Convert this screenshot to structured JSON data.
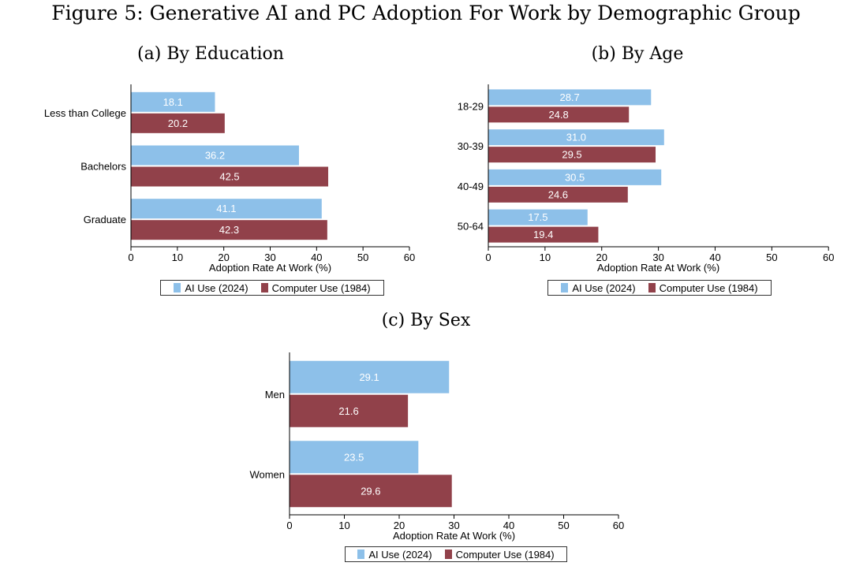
{
  "figure_title": "Figure 5: Generative AI and PC Adoption For Work by Demographic Group",
  "colors": {
    "ai": "#8dc0e9",
    "pc": "#91414a"
  },
  "legend": {
    "ai_label": "AI Use (2024)",
    "pc_label": "Computer Use (1984)"
  },
  "chart_data": [
    {
      "type": "bar",
      "orientation": "horizontal",
      "title": "(a) By Education",
      "categories": [
        "Less than College",
        "Bachelors",
        "Graduate"
      ],
      "series": [
        {
          "name": "AI Use (2024)",
          "values": [
            18.1,
            36.2,
            41.1
          ],
          "labels": [
            "18.1",
            "36.2",
            "41.1"
          ]
        },
        {
          "name": "Computer Use (1984)",
          "values": [
            20.2,
            42.5,
            42.3
          ],
          "labels": [
            "20.2",
            "42.5",
            "42.3"
          ]
        }
      ],
      "xlabel": "Adoption Rate At Work (%)",
      "xlim": [
        0,
        60
      ],
      "xticks": [
        "0",
        "10",
        "20",
        "30",
        "40",
        "50",
        "60"
      ],
      "legend": "bottom"
    },
    {
      "type": "bar",
      "orientation": "horizontal",
      "title": "(b) By Age",
      "categories": [
        "18-29",
        "30-39",
        "40-49",
        "50-64"
      ],
      "series": [
        {
          "name": "AI Use (2024)",
          "values": [
            28.7,
            31.0,
            30.5,
            17.5
          ],
          "labels": [
            "28.7",
            "31.0",
            "30.5",
            "17.5"
          ]
        },
        {
          "name": "Computer Use (1984)",
          "values": [
            24.8,
            29.5,
            24.6,
            19.4
          ],
          "labels": [
            "24.8",
            "29.5",
            "24.6",
            "19.4"
          ]
        }
      ],
      "xlabel": "Adoption Rate At Work (%)",
      "xlim": [
        0,
        60
      ],
      "xticks": [
        "0",
        "10",
        "20",
        "30",
        "40",
        "50",
        "60"
      ],
      "legend": "bottom"
    },
    {
      "type": "bar",
      "orientation": "horizontal",
      "title": "(c) By Sex",
      "categories": [
        "Men",
        "Women"
      ],
      "series": [
        {
          "name": "AI Use (2024)",
          "values": [
            29.1,
            23.5
          ],
          "labels": [
            "29.1",
            "23.5"
          ]
        },
        {
          "name": "Computer Use (1984)",
          "values": [
            21.6,
            29.6
          ],
          "labels": [
            "21.6",
            "29.6"
          ]
        }
      ],
      "xlabel": "Adoption Rate At Work (%)",
      "xlim": [
        0,
        60
      ],
      "xticks": [
        "0",
        "10",
        "20",
        "30",
        "40",
        "50",
        "60"
      ],
      "legend": "bottom"
    }
  ]
}
